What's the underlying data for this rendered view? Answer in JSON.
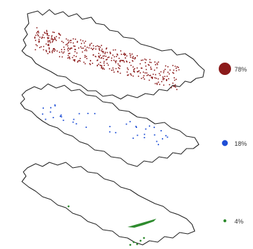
{
  "panels": [
    {
      "name": "panel-top",
      "label": "78%",
      "fraction": 0.78,
      "color": "#8b1a1a"
    },
    {
      "name": "panel-middle",
      "label": "18%",
      "fraction": 0.18,
      "color": "#1f4fd6"
    },
    {
      "name": "panel-bottom",
      "label": "4%",
      "fraction": 0.04,
      "color": "#2e8b2e"
    }
  ]
}
